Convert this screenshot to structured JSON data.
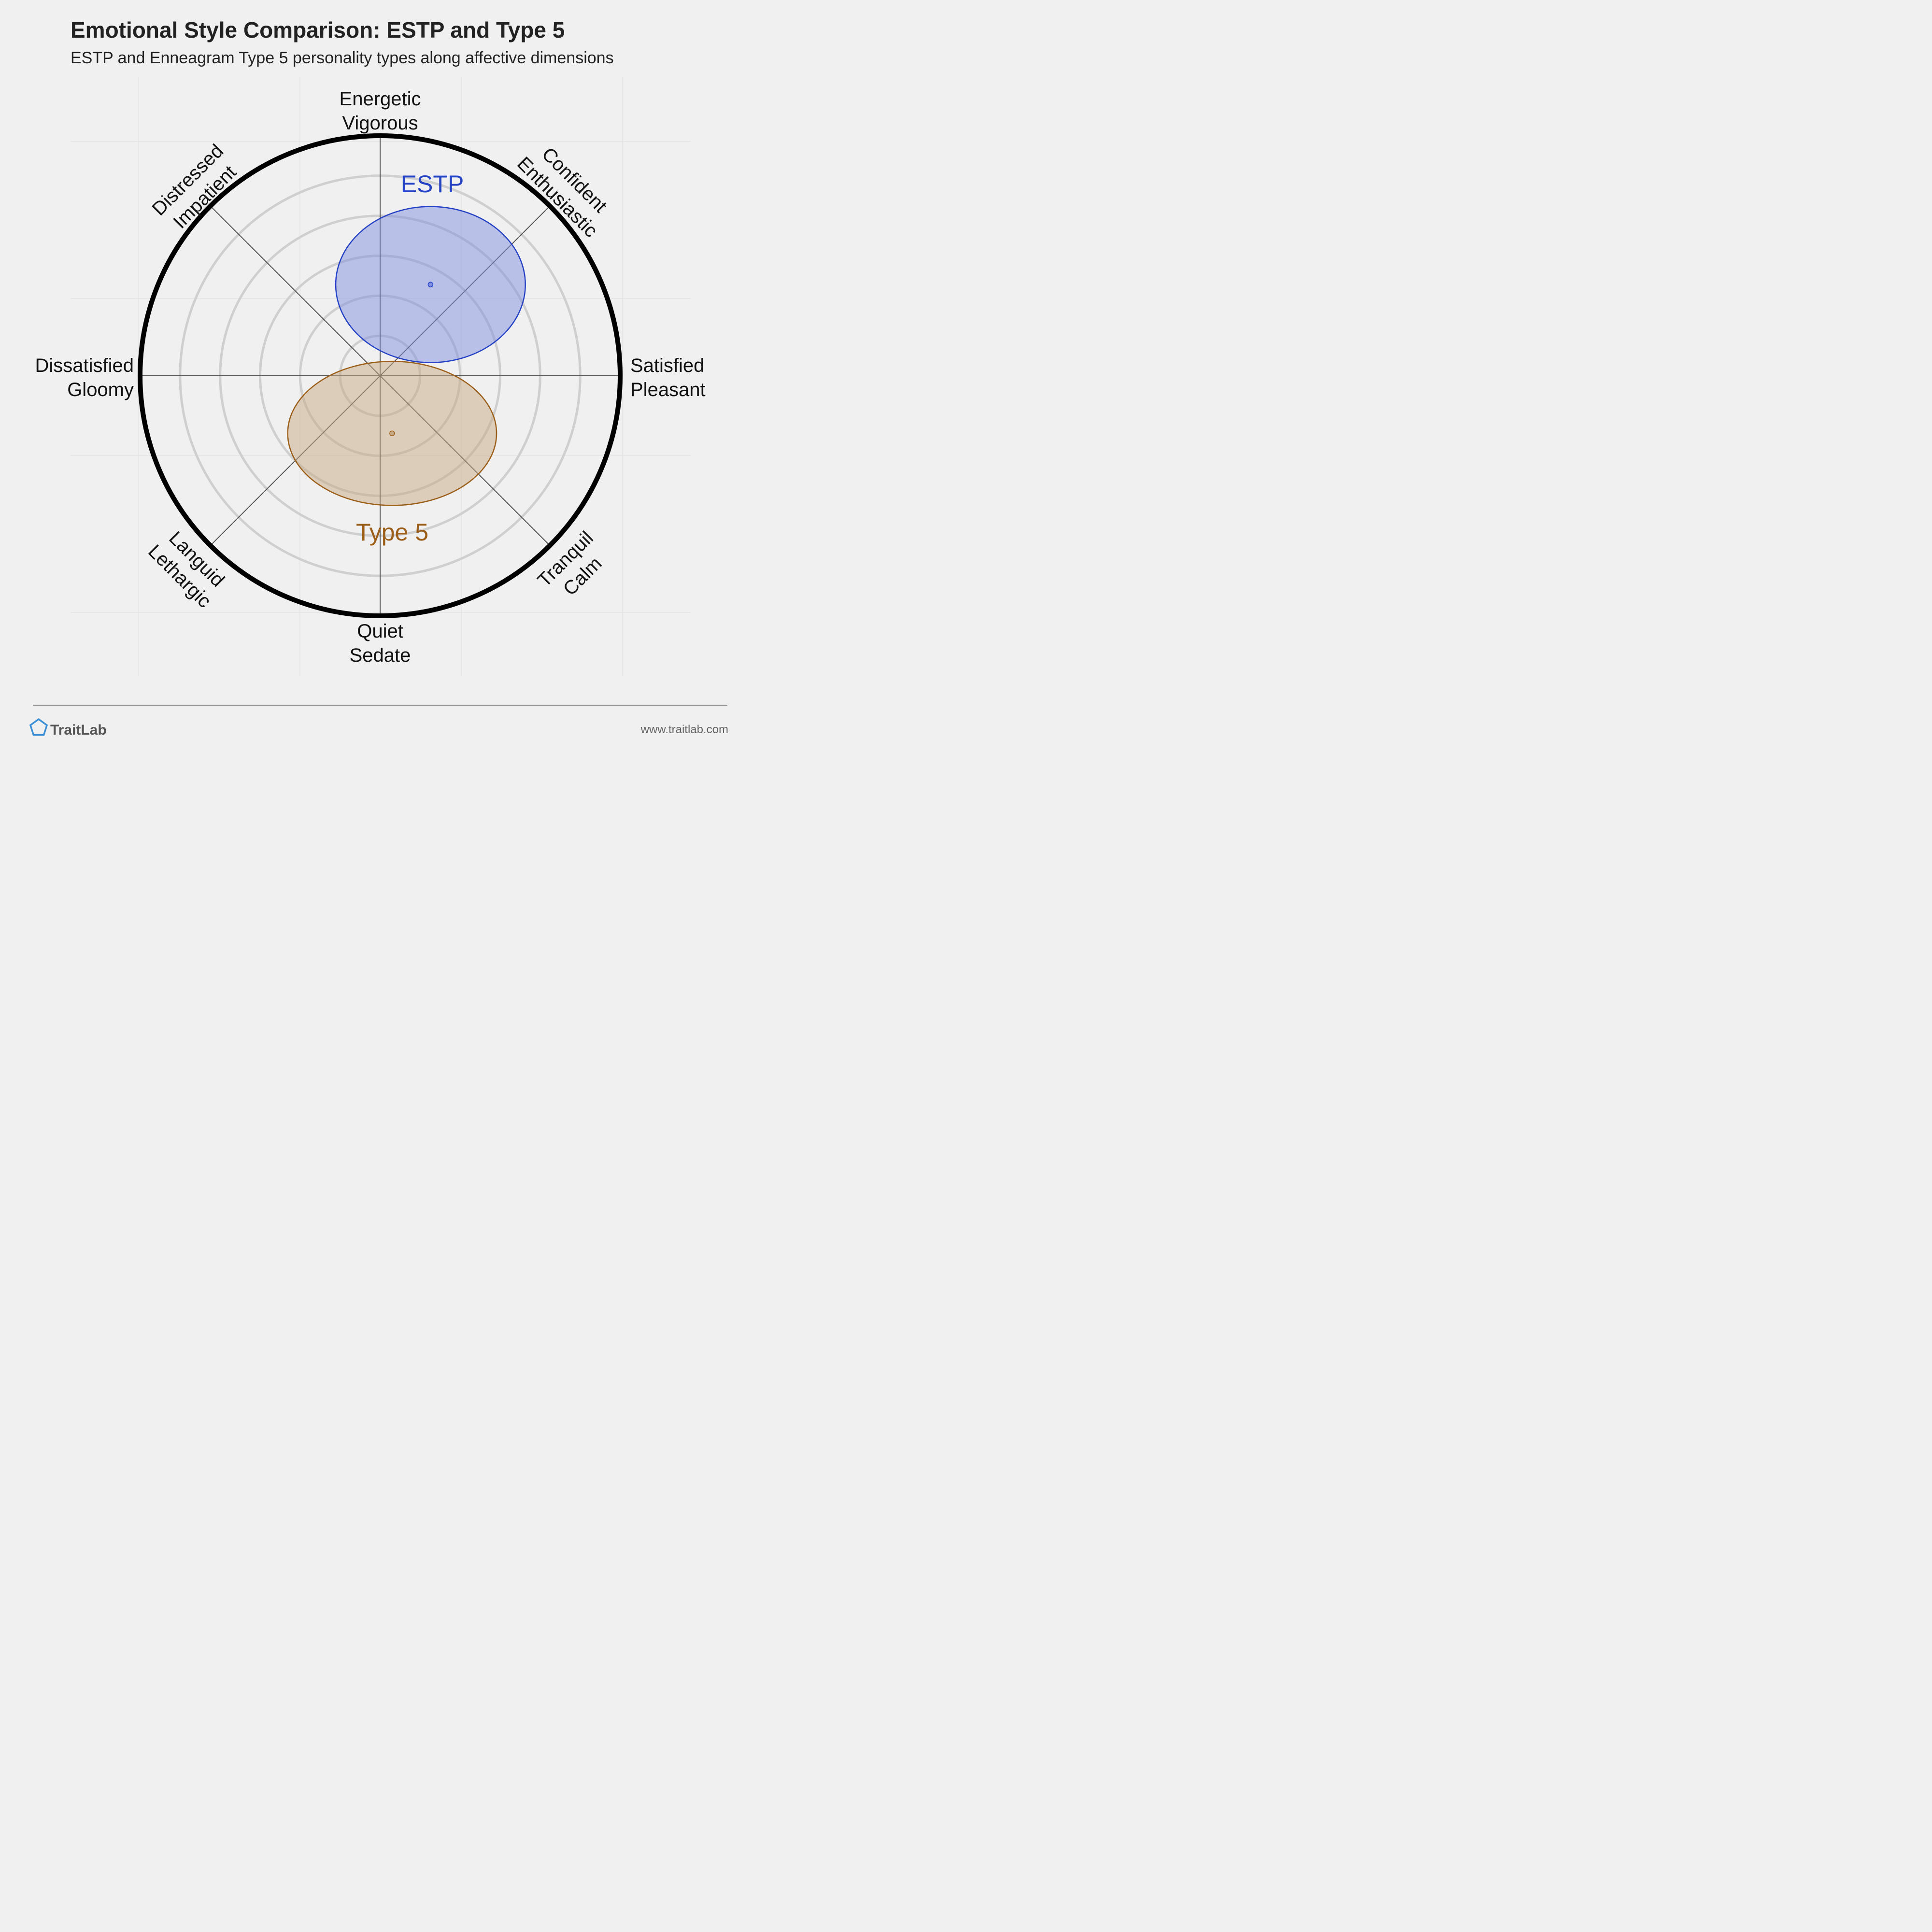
{
  "header": {
    "title": "Emotional Style Comparison: ESTP and Type 5",
    "subtitle": "ESTP and Enneagram Type 5 personality types along affective dimensions"
  },
  "chart_data": {
    "type": "scatter",
    "title": "Emotional Style Comparison: ESTP and Type 5",
    "subtitle": "ESTP and Enneagram Type 5 personality types along affective dimensions",
    "axes": {
      "x": {
        "negative": [
          "Dissatisfied",
          "Gloomy"
        ],
        "positive": [
          "Satisfied",
          "Pleasant"
        ]
      },
      "y": {
        "negative": [
          "Quiet",
          "Sedate"
        ],
        "positive": [
          "Energetic",
          "Vigorous"
        ]
      },
      "diagonal_ne": [
        "Confident",
        "Enthusiastic"
      ],
      "diagonal_nw": [
        "Distressed",
        "Impatient"
      ],
      "diagonal_se": [
        "Tranquil",
        "Calm"
      ],
      "diagonal_sw": [
        "Languid",
        "Lethargic"
      ],
      "range": [
        -1,
        1
      ],
      "rings": 5
    },
    "series": [
      {
        "name": "ESTP",
        "x": 0.21,
        "y": 0.38,
        "spread_x": 0.395,
        "spread_y": 0.325,
        "color": "#2541c4",
        "fill": "#7f8fe0"
      },
      {
        "name": "Type 5",
        "x": 0.05,
        "y": -0.24,
        "spread_x": 0.435,
        "spread_y": 0.3,
        "color": "#9c5f1a",
        "fill": "#c8a884"
      }
    ]
  },
  "footer": {
    "brand": "TraitLab",
    "url": "www.traitlab.com",
    "brand_color": "#3a8fd6"
  }
}
